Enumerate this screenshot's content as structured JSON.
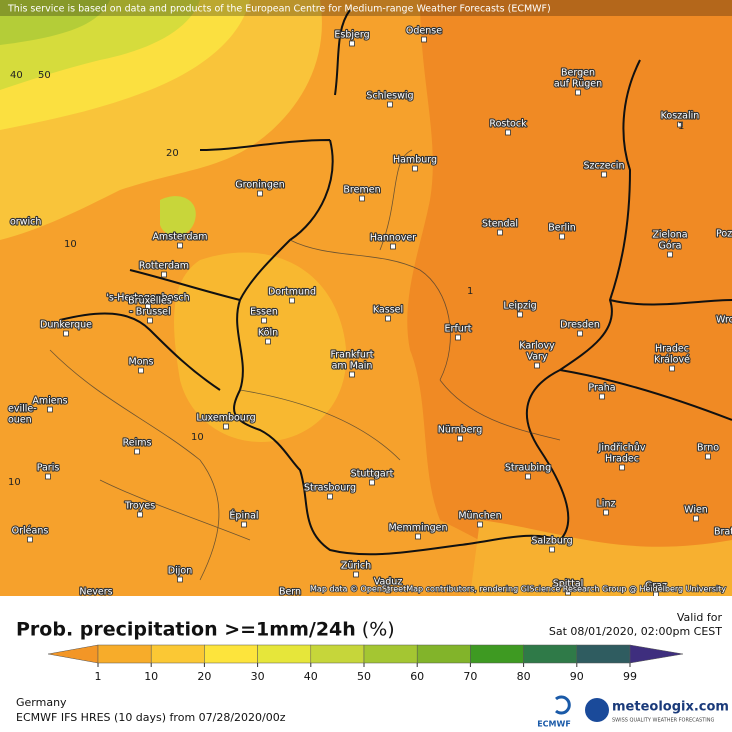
{
  "header": {
    "notice": "This service is based on data and products of the European Centre for Medium-range Weather Forecasts (ECMWF)"
  },
  "map": {
    "attribution": "Map data © OpenStreetMap contributors, rendering GIScience Research Group @ Heidelberg University",
    "cities": [
      [
        "Esbjerg"
      ],
      [
        "Odense"
      ],
      [
        "Schleswig"
      ],
      [
        "Rostock"
      ],
      [
        "Bergen",
        "auf Rügen"
      ],
      [
        "Koszalin"
      ],
      [
        "Hamburg"
      ],
      [
        "Szczecin"
      ],
      [
        "Groningen"
      ],
      [
        "Bremen"
      ],
      [
        "Stendal"
      ],
      [
        "Berlin"
      ],
      [
        "Amsterdam"
      ],
      [
        "Hannover"
      ],
      [
        "Zielona",
        "Góra"
      ],
      [
        "Rotterdam"
      ],
      [
        "'s-Hertogenbosch"
      ],
      [
        "Dortmund"
      ],
      [
        "Essen"
      ],
      [
        "Kassel"
      ],
      [
        "Leipzig"
      ],
      [
        "Dunkerque"
      ],
      [
        "Bruxelles",
        "- Brussel"
      ],
      [
        "Köln"
      ],
      [
        "Erfurt"
      ],
      [
        "Dresden"
      ],
      [
        "Mons"
      ],
      [
        "Frankfurt",
        "am Main"
      ],
      [
        "Karlovy",
        "Vary"
      ],
      [
        "Hradec",
        "Králové"
      ],
      [
        "Amiens"
      ],
      [
        "Praha"
      ],
      [
        "Luxembourg"
      ],
      [
        "Nürnberg"
      ],
      [
        "Reims"
      ],
      [
        "Brno"
      ],
      [
        "Paris"
      ],
      [
        "Stuttgart"
      ],
      [
        "Jindřichův",
        "Hradec"
      ],
      [
        "Straubing"
      ],
      [
        "Strasbourg"
      ],
      [
        "Troyes"
      ],
      [
        "Linz"
      ],
      [
        "Wien"
      ],
      [
        "München"
      ],
      [
        "Memmingen"
      ],
      [
        "Orléans"
      ],
      [
        "Épinal"
      ],
      [
        "Salzburg"
      ],
      [
        "Dijon"
      ],
      [
        "Zürich"
      ],
      [
        "Vaduz"
      ],
      [
        "Spittal"
      ],
      [
        "Nevers"
      ],
      [
        "Bern"
      ],
      [
        "Graz"
      ],
      [
        "orwich"
      ],
      [
        "Poz"
      ],
      [
        "Wro"
      ],
      [
        "eville-",
        "ouen"
      ],
      [
        "Brat"
      ]
    ],
    "contour_labels": [
      40,
      50,
      20,
      10,
      1,
      1,
      10,
      10
    ]
  },
  "legend": {
    "title": "Prob. precipitation >=1mm/24h",
    "unit": "(%)",
    "ticks": [
      1,
      10,
      20,
      30,
      40,
      50,
      60,
      70,
      80,
      90,
      99
    ],
    "colors": [
      "#f39626",
      "#f7ac2a",
      "#fbc834",
      "#fde43c",
      "#e6e63a",
      "#c6d63a",
      "#a4c632",
      "#82b42a",
      "#3e9a22",
      "#2f7a48",
      "#2f5c60",
      "#3e2e7e"
    ]
  },
  "valid": {
    "label": "Valid for",
    "time": "Sat 08/01/2020, 02:00pm CEST"
  },
  "footer": {
    "region": "Germany",
    "model": "ECMWF IFS HRES (10 days) from 07/28/2020/00z",
    "ecmwf": "ECMWF",
    "brand": "meteologix.com",
    "tagline": "SWISS QUALITY WEATHER FORECASTING"
  }
}
